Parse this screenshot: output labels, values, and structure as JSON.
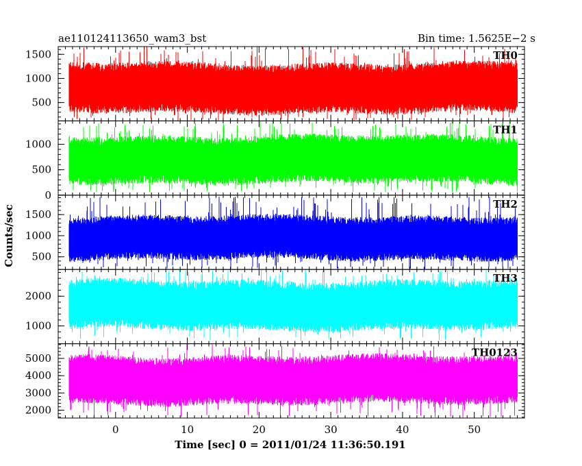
{
  "title_left": "ae110124113650_wam3_bst",
  "title_right": "Bin time: 1.5625E−2 s",
  "xlabel": "Time [sec] 0 = 2011/01/24 11:36:50.191",
  "ylabel": "Counts/sec",
  "chart_data": [
    {
      "type": "line",
      "series": [
        {
          "name": "TH0",
          "color": "#ff0000"
        }
      ],
      "xlim": [
        -8,
        57
      ],
      "ylim": [
        120,
        1660
      ],
      "yticks": [
        500,
        1000,
        1500
      ],
      "data_span": [
        -8,
        56
      ],
      "typical_range": [
        300,
        1300
      ],
      "peak_range": [
        120,
        1660
      ]
    },
    {
      "type": "line",
      "series": [
        {
          "name": "TH1",
          "color": "#00ff00"
        }
      ],
      "xlim": [
        -8,
        57
      ],
      "ylim": [
        0,
        1460
      ],
      "yticks": [
        0,
        500,
        1000
      ],
      "data_span": [
        -8,
        56
      ],
      "typical_range": [
        250,
        1150
      ],
      "peak_range": [
        60,
        1460
      ]
    },
    {
      "type": "line",
      "series": [
        {
          "name": "TH2",
          "color": "#0000ff"
        }
      ],
      "xlim": [
        -8,
        57
      ],
      "ylim": [
        200,
        1960
      ],
      "yticks": [
        500,
        1000,
        1500
      ],
      "data_span": [
        -8,
        56
      ],
      "typical_range": [
        450,
        1450
      ],
      "peak_range": [
        200,
        1960
      ]
    },
    {
      "type": "line",
      "series": [
        {
          "name": "TH3",
          "color": "#00ffff"
        }
      ],
      "xlim": [
        -8,
        57
      ],
      "ylim": [
        400,
        2900
      ],
      "yticks": [
        1000,
        2000
      ],
      "data_span": [
        -8,
        56
      ],
      "typical_range": [
        900,
        2500
      ],
      "peak_range": [
        500,
        2900
      ]
    },
    {
      "type": "line",
      "series": [
        {
          "name": "TH0123",
          "color": "#ff00ff"
        }
      ],
      "xlim": [
        -8,
        57
      ],
      "ylim": [
        1550,
        5850
      ],
      "yticks": [
        2000,
        3000,
        4000,
        5000
      ],
      "data_span": [
        -8,
        56
      ],
      "typical_range": [
        2400,
        5100
      ],
      "peak_range": [
        1550,
        5850
      ]
    }
  ],
  "xticks": [
    0,
    10,
    20,
    30,
    40,
    50
  ]
}
